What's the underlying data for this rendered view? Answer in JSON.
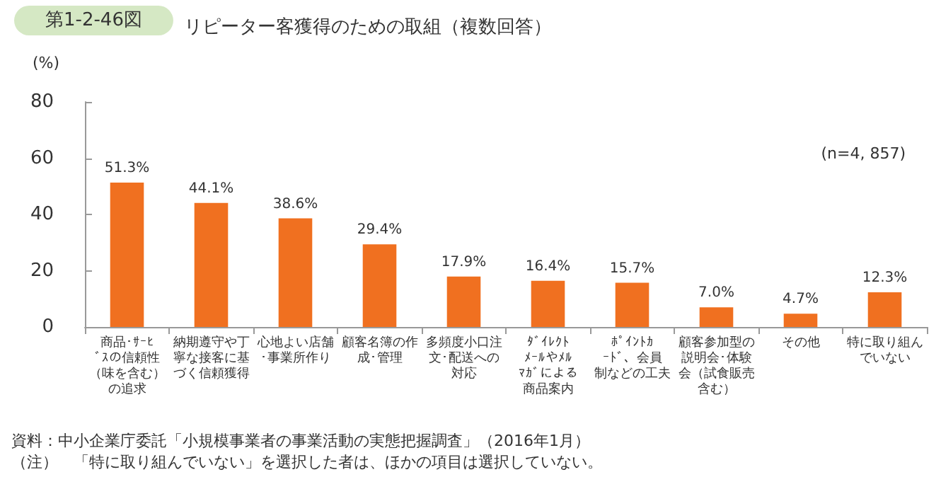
{
  "chart_data": {
    "type": "bar",
    "subtitle": "第1-2-46図",
    "title": "リピーター客獲得のための取組（複数回答）",
    "ylabel": "(%)",
    "categories": [
      "商品･ｻｰﾋﾞｽの信頼性（味を含む）の追求",
      "納期遵守や丁寧な接客に基づく信頼獲得",
      "心地よい店舗･事業所作り",
      "顧客名簿の作成･管理",
      "多頻度小口注文･配送への対応",
      "ﾀﾞｲﾚｸﾄﾒｰﾙやﾒﾙﾏｶﾞによる商品案内",
      "ﾎﾟｲﾝﾄｶｰﾄﾞ、会員制などの工夫",
      "顧客参加型の説明会･体験会（試食販売含む）",
      "その他",
      "特に取り組んでいない"
    ],
    "values": [
      51.3,
      44.1,
      38.6,
      29.4,
      17.9,
      16.4,
      15.7,
      7.0,
      4.7,
      12.3
    ],
    "value_labels": [
      "51.3%",
      "44.1%",
      "38.6%",
      "29.4%",
      "17.9%",
      "16.4%",
      "15.7%",
      "7.0%",
      "4.7%",
      "12.3%"
    ],
    "color": "#f07020",
    "ylim": [
      0,
      80
    ],
    "yticks": [
      0,
      20,
      40,
      60,
      80
    ],
    "grid": false,
    "annotations": [
      "(n=4, 857)",
      "資料：中小企業庁委託「小規模事業者の事業活動の実態把握調査」（2016年1月）",
      "（注）　「特に取り組んでいない」を選択した者は、ほかの項目は選択していない。"
    ]
  }
}
